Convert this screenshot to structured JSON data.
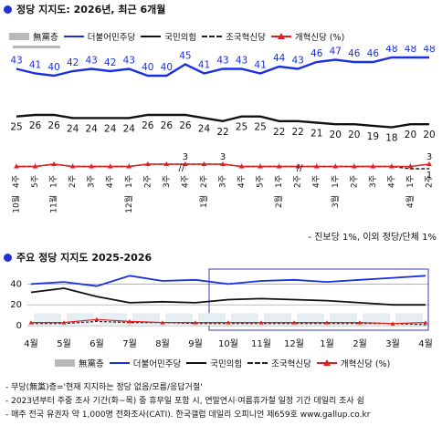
{
  "sections": {
    "top_title": "정당 지지도: 2026년, 최근 6개월",
    "bottom_title": "주요 정당 지지도 2025-2026"
  },
  "legend": {
    "none": "無黨층",
    "dem": "더불어민주당",
    "ppp": "국민의힘",
    "rebuild": "조국혁신당",
    "reform": "개혁신당 (%)",
    "reform_short": "개혁신당 (%)"
  },
  "notes": {
    "side": "- 진보당 1%, 이외 정당/단체 1%",
    "footnotes": [
      "- 무당(無黨)층='현재 지지하는 정당 없음/모름/응답거절'",
      "- 2023년부터 주중 조사 기간(화~목) 중 휴무일 포함 시, 연말연시·여름휴가철 일정 기간 데일리 조사 쉼",
      "- 매주 전국 유권자 약 1,000명 전화조사(CATI). 한국갤럽 데일리 오피니언 제659호 www.gallup.co.kr"
    ]
  },
  "colors": {
    "dem": "#1a2fe0",
    "ppp": "#111111",
    "rebuild": "#222222",
    "reform": "#e02020",
    "none": "#b8b8b8",
    "title_dot": "#1f2fd6"
  },
  "chart_data": [
    {
      "type": "line",
      "title": "정당 지지도: 2026년, 최근 6개월",
      "x": [
        "10월 4주",
        "5주",
        "11월 1주",
        "2주",
        "3주",
        "4주",
        "12월 1주",
        "2주",
        "3주",
        "4주",
        "1월 2주",
        "3주",
        "4주",
        "5주",
        "2월 1주",
        "2주",
        "4주",
        "3월 1주",
        "2주",
        "3주",
        "4주",
        "4월 1주",
        "2주"
      ],
      "x_ticks": [
        {
          "week": "4주",
          "month": "10월"
        },
        {
          "week": "5주",
          "month": ""
        },
        {
          "week": "1주",
          "month": "11월"
        },
        {
          "week": "2주",
          "month": ""
        },
        {
          "week": "3주",
          "month": ""
        },
        {
          "week": "4주",
          "month": ""
        },
        {
          "week": "1주",
          "month": "12월"
        },
        {
          "week": "2주",
          "month": ""
        },
        {
          "week": "3주",
          "month": ""
        },
        {
          "week": "4주",
          "month": ""
        },
        {
          "week": "2주",
          "month": "1월"
        },
        {
          "week": "3주",
          "month": ""
        },
        {
          "week": "4주",
          "month": ""
        },
        {
          "week": "5주",
          "month": ""
        },
        {
          "week": "1주",
          "month": "2월"
        },
        {
          "week": "2주",
          "month": ""
        },
        {
          "week": "4주",
          "month": ""
        },
        {
          "week": "1주",
          "month": "3월"
        },
        {
          "week": "2주",
          "month": ""
        },
        {
          "week": "3주",
          "month": ""
        },
        {
          "week": "4주",
          "month": ""
        },
        {
          "week": "1주",
          "month": "4월"
        },
        {
          "week": "2주",
          "month": ""
        }
      ],
      "break_marks": [
        "//",
        "//"
      ],
      "series": [
        {
          "name": "더불어민주당",
          "key": "dem",
          "values": [
            43,
            41,
            40,
            42,
            43,
            42,
            43,
            40,
            40,
            45,
            41,
            43,
            43,
            41,
            44,
            43,
            46,
            47,
            46,
            46,
            48,
            48,
            48
          ],
          "labels": [
            "43",
            "41",
            "40",
            "42",
            "43",
            "42",
            "43",
            "40",
            "40",
            "45",
            "41",
            "43",
            "43",
            "41",
            "44",
            "43",
            "46",
            "47",
            "46",
            "46",
            "48",
            "48",
            "48"
          ]
        },
        {
          "name": "국민의힘",
          "key": "ppp",
          "values": [
            25,
            26,
            26,
            24,
            24,
            24,
            24,
            26,
            26,
            26,
            24,
            22,
            25,
            25,
            22,
            22,
            21,
            20,
            20,
            19,
            18,
            20,
            20
          ],
          "labels": [
            "25",
            "26",
            "26",
            "24",
            "24",
            "24",
            "24",
            "26",
            "26",
            "26",
            "24",
            "22",
            "25",
            "25",
            "22",
            "22",
            "21",
            "20",
            "20",
            "19",
            "18",
            "20",
            "20"
          ]
        },
        {
          "name": "조국혁신당",
          "key": "rebuild",
          "values": [
            2,
            2,
            3,
            2,
            2,
            2,
            2,
            3,
            3,
            3,
            3,
            3,
            2,
            2,
            2,
            2,
            2,
            2,
            2,
            2,
            2,
            1,
            1
          ],
          "labels": [
            "1"
          ]
        },
        {
          "name": "개혁신당",
          "key": "reform",
          "values": [
            2,
            2,
            3,
            2,
            2,
            2,
            2,
            3,
            3,
            3,
            3,
            3,
            2,
            2,
            2,
            2,
            2,
            2,
            2,
            2,
            2,
            2,
            3
          ],
          "labels": [
            "3",
            "3",
            "3"
          ]
        }
      ],
      "data_label_text": {
        "reform_a": "3",
        "reform_b": "3",
        "reform_end": "3",
        "rebuild_end": "1"
      },
      "ylim": [
        0,
        55
      ]
    },
    {
      "type": "line",
      "title": "주요 정당 지지도 2025-2026",
      "categories": [
        "4월",
        "5월",
        "6월",
        "7월",
        "8월",
        "9월",
        "10월",
        "11월",
        "12월",
        "1월",
        "2월",
        "3월",
        "4월"
      ],
      "y_ticks": [
        "40",
        "20",
        "0"
      ],
      "series": [
        {
          "name": "더불어민주당",
          "key": "dem",
          "values": [
            40,
            42,
            38,
            48,
            43,
            44,
            40,
            43,
            44,
            42,
            44,
            46,
            48
          ]
        },
        {
          "name": "국민의힘",
          "key": "ppp",
          "values": [
            32,
            36,
            28,
            22,
            23,
            22,
            25,
            26,
            25,
            24,
            22,
            20,
            20
          ]
        },
        {
          "name": "조국혁신당",
          "key": "rebuild",
          "values": [
            2,
            2,
            4,
            3,
            3,
            2,
            2,
            2,
            2,
            2,
            2,
            2,
            1
          ]
        },
        {
          "name": "개혁신당",
          "key": "reform",
          "values": [
            3,
            3,
            6,
            4,
            3,
            3,
            3,
            3,
            3,
            3,
            3,
            2,
            3
          ]
        }
      ],
      "ylim": [
        0,
        50
      ]
    }
  ]
}
